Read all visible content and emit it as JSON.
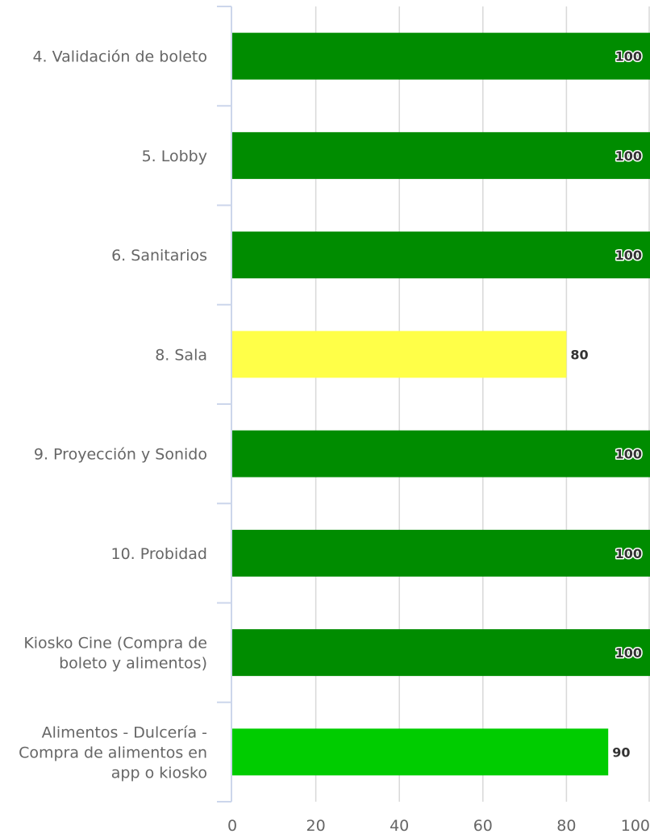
{
  "chart_data": {
    "type": "bar",
    "orientation": "horizontal",
    "title": "",
    "xlabel": "",
    "ylabel": "",
    "xlim": [
      0,
      100
    ],
    "x_ticks": [
      0,
      20,
      40,
      60,
      80,
      100
    ],
    "grid": "vertical",
    "legend": "none",
    "categories": [
      "4. Validación de boleto",
      "5. Lobby",
      "6. Sanitarios",
      "8. Sala",
      "9. Proyección y Sonido",
      "10. Probidad",
      "Kiosko Cine (Compra de boleto y alimentos)",
      "Alimentos - Dulcería - Compra de alimentos en app o kiosko"
    ],
    "values": [
      100,
      100,
      100,
      80,
      100,
      100,
      100,
      90
    ],
    "bar_colors": [
      "#008c00",
      "#008c00",
      "#008c00",
      "#ffff48",
      "#008c00",
      "#008c00",
      "#008c00",
      "#00cc00"
    ]
  }
}
